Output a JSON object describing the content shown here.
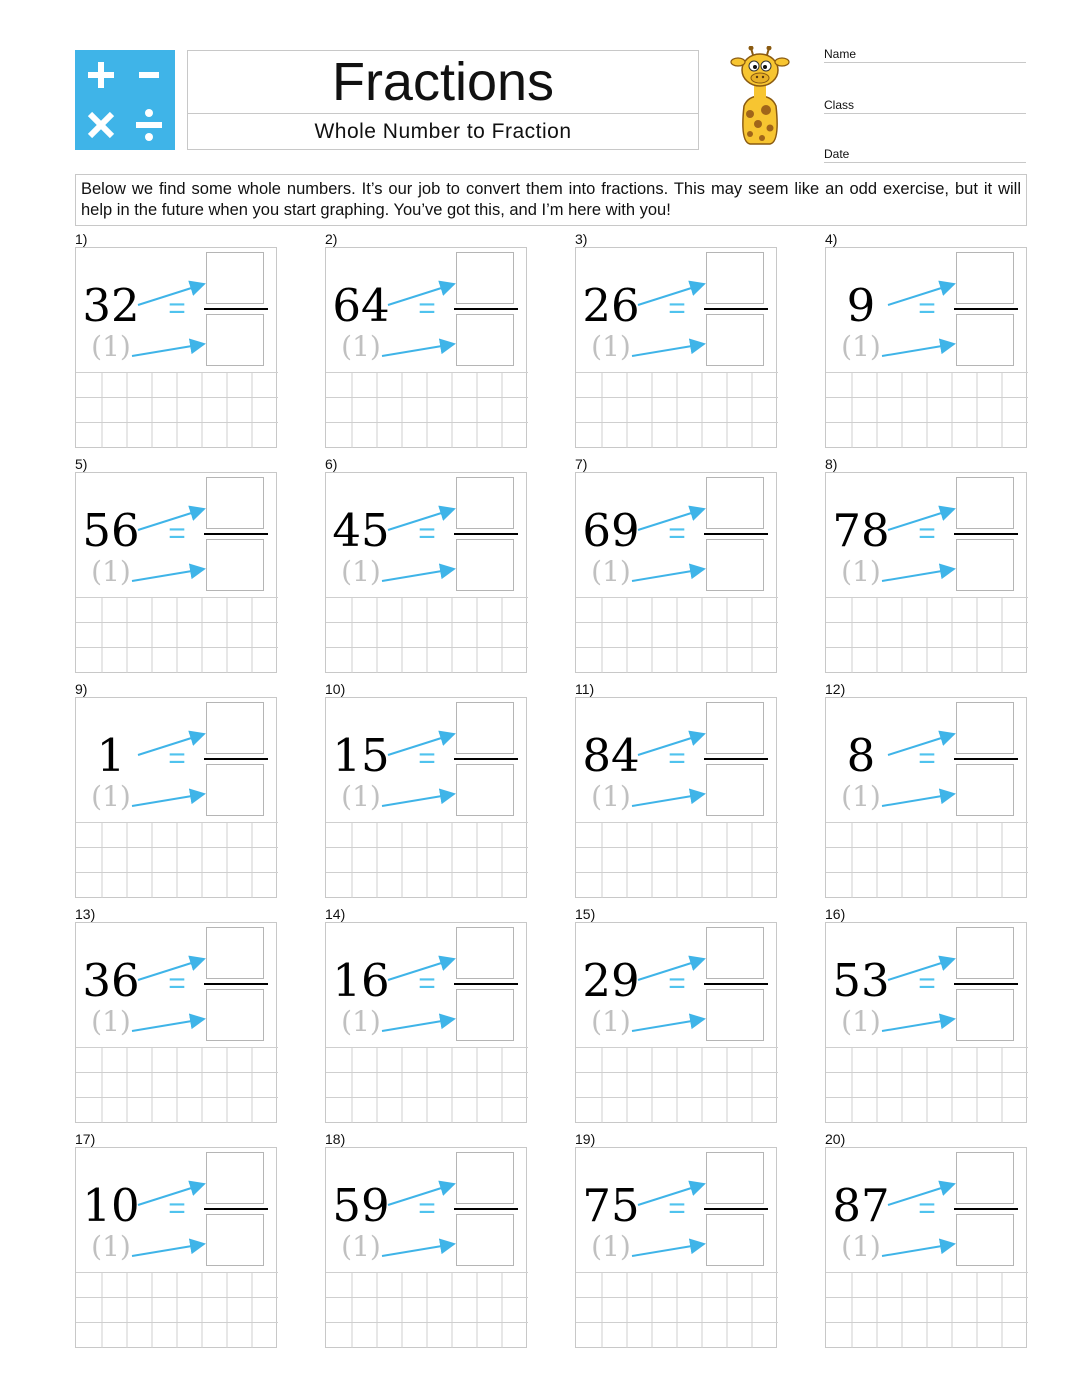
{
  "header": {
    "title": "Fractions",
    "subtitle": "Whole Number to Fraction",
    "logo_icons": [
      "plus-icon",
      "minus-icon",
      "times-icon",
      "divide-icon"
    ],
    "mascot": "giraffe-icon"
  },
  "fields": {
    "name_label": "Name",
    "class_label": "Class",
    "date_label": "Date"
  },
  "instructions": "Below we find some whole numbers. It’s our job to convert them into fractions. This may seem like an odd exercise, but it will help in the future when you start graphing. You’ve got this, and I’m here with you!",
  "denominator_hint": "(1)",
  "equals_sign": "=",
  "colors": {
    "accent": "#3fb4e8",
    "hint": "#c0c0c0",
    "border": "#c8c8c8"
  },
  "problems": [
    {
      "label": "1)",
      "whole": "32"
    },
    {
      "label": "2)",
      "whole": "64"
    },
    {
      "label": "3)",
      "whole": "26"
    },
    {
      "label": "4)",
      "whole": "9"
    },
    {
      "label": "5)",
      "whole": "56"
    },
    {
      "label": "6)",
      "whole": "45"
    },
    {
      "label": "7)",
      "whole": "69"
    },
    {
      "label": "8)",
      "whole": "78"
    },
    {
      "label": "9)",
      "whole": "1"
    },
    {
      "label": "10)",
      "whole": "15"
    },
    {
      "label": "11)",
      "whole": "84"
    },
    {
      "label": "12)",
      "whole": "8"
    },
    {
      "label": "13)",
      "whole": "36"
    },
    {
      "label": "14)",
      "whole": "16"
    },
    {
      "label": "15)",
      "whole": "29"
    },
    {
      "label": "16)",
      "whole": "53"
    },
    {
      "label": "17)",
      "whole": "10"
    },
    {
      "label": "18)",
      "whole": "59"
    },
    {
      "label": "19)",
      "whole": "75"
    },
    {
      "label": "20)",
      "whole": "87"
    }
  ]
}
